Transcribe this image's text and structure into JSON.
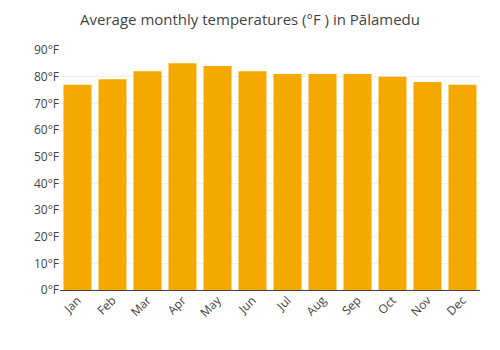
{
  "chart_data": {
    "type": "bar",
    "title": "Average monthly temperatures (°F ) in Pālamedu",
    "categories": [
      "Jan",
      "Feb",
      "Mar",
      "Apr",
      "May",
      "Jun",
      "Jul",
      "Aug",
      "Sep",
      "Oct",
      "Nov",
      "Dec"
    ],
    "values": [
      77,
      79,
      82,
      85,
      84,
      82,
      81,
      81,
      81,
      80,
      78,
      77
    ],
    "color": "#F5A800",
    "ylim": [
      0,
      90
    ],
    "yticks": [
      {
        "value": 0,
        "label": "0°F"
      },
      {
        "value": 10,
        "label": "10°F"
      },
      {
        "value": 20,
        "label": "20°F"
      },
      {
        "value": 30,
        "label": "30°F"
      },
      {
        "value": 40,
        "label": "40°F"
      },
      {
        "value": 50,
        "label": "50°F"
      },
      {
        "value": 60,
        "label": "60°F"
      },
      {
        "value": 70,
        "label": "70°F"
      },
      {
        "value": 80,
        "label": "80°F"
      },
      {
        "value": 90,
        "label": "90°F"
      }
    ],
    "grid": true
  }
}
